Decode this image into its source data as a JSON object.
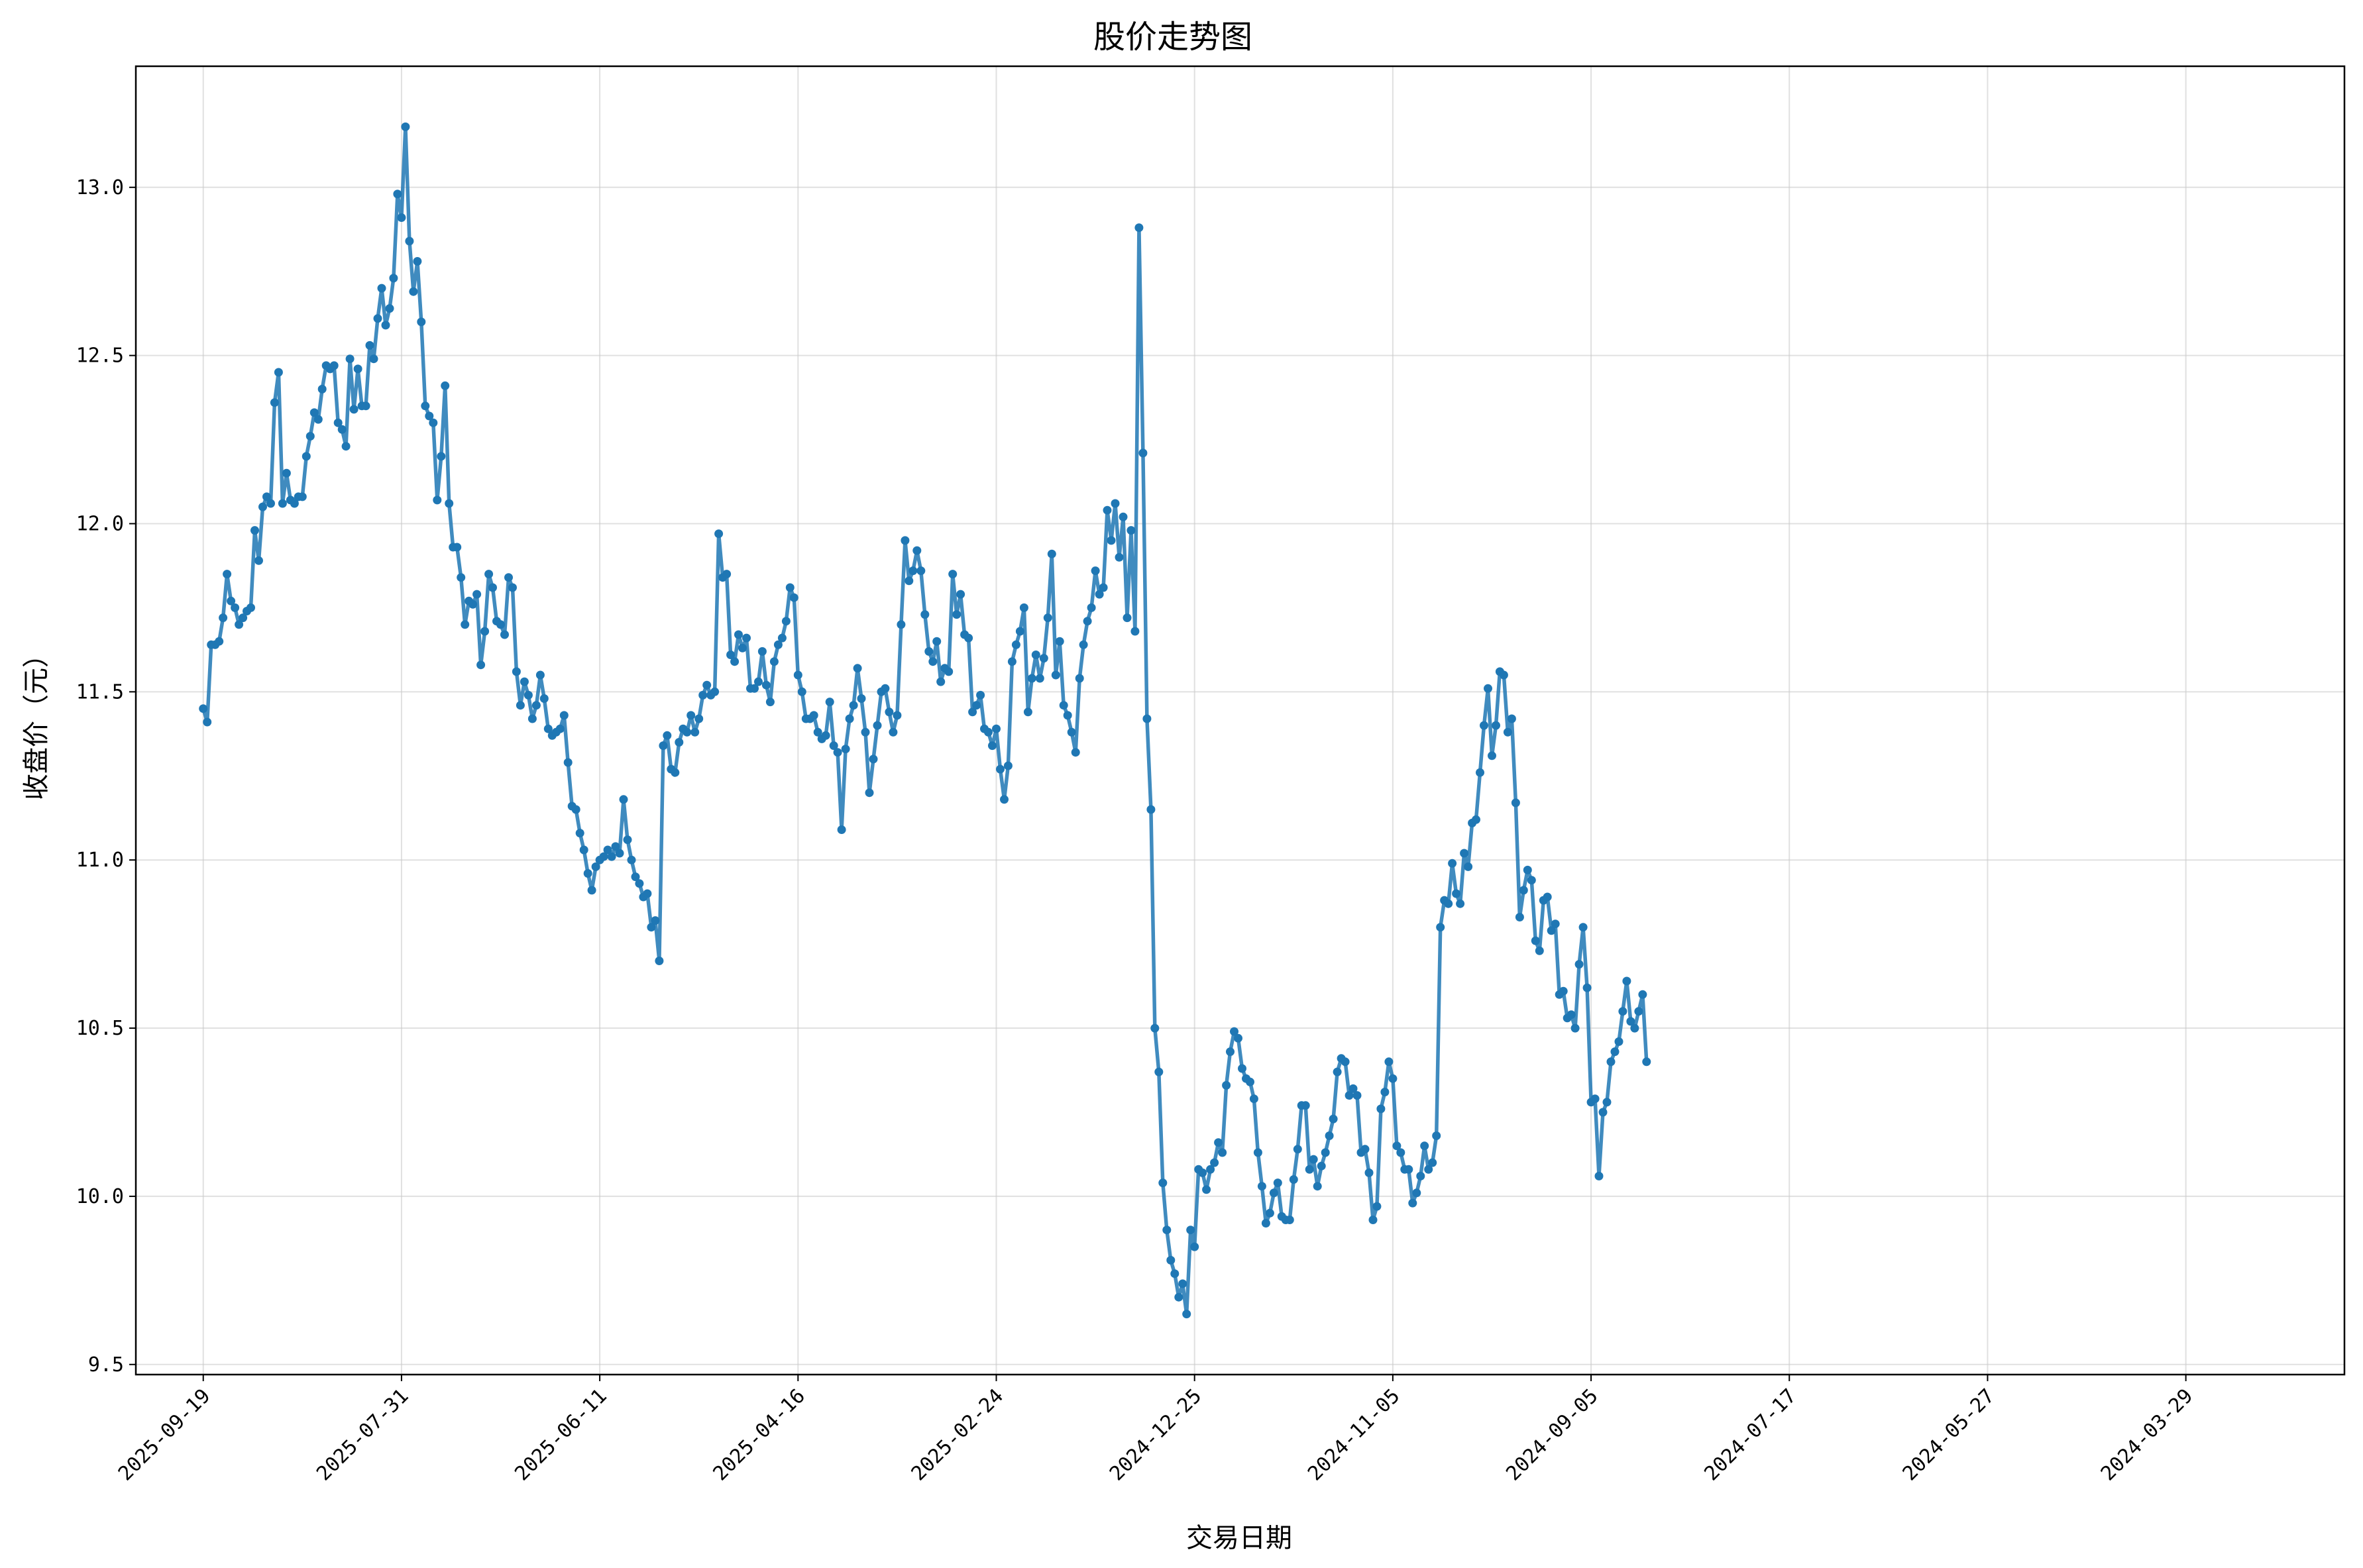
{
  "chart_data": {
    "type": "line",
    "title": "股价走势图",
    "xlabel": "交易日期",
    "ylabel": "收盘价（元）",
    "ylim": [
      9.47,
      13.36
    ],
    "xlim": [
      -17,
      540
    ],
    "grid": true,
    "line_color": "#1f77b4",
    "x_ticks": [
      {
        "index": 0,
        "label": "2025-09-19"
      },
      {
        "index": 50,
        "label": "2025-07-31"
      },
      {
        "index": 100,
        "label": "2025-06-11"
      },
      {
        "index": 150,
        "label": "2025-04-16"
      },
      {
        "index": 200,
        "label": "2025-02-24"
      },
      {
        "index": 250,
        "label": "2024-12-25"
      },
      {
        "index": 300,
        "label": "2024-11-05"
      },
      {
        "index": 350,
        "label": "2024-09-05"
      },
      {
        "index": 400,
        "label": "2024-07-17"
      },
      {
        "index": 450,
        "label": "2024-05-27"
      },
      {
        "index": 500,
        "label": "2024-03-29"
      }
    ],
    "y_ticks": [
      "9.5",
      "10.0",
      "10.5",
      "11.0",
      "11.5",
      "12.0",
      "12.5",
      "13.0"
    ],
    "series": [
      {
        "x_start": 0,
        "values": [
          11.45,
          11.41,
          11.64,
          11.64,
          11.65,
          11.72,
          11.85,
          11.77,
          11.75,
          11.7,
          11.72,
          11.74,
          11.75,
          11.98,
          11.89,
          12.05,
          12.08,
          12.06,
          12.36,
          12.45,
          12.06,
          12.15,
          12.07,
          12.06,
          12.08,
          12.08,
          12.2,
          12.26,
          12.33,
          12.31,
          12.4,
          12.47,
          12.46,
          12.47,
          12.3,
          12.28,
          12.23,
          12.49,
          12.34,
          12.46,
          12.35,
          12.35,
          12.53,
          12.49,
          12.61,
          12.7,
          12.59,
          12.64,
          12.73,
          12.98,
          12.91,
          13.18,
          12.84,
          12.69,
          12.78,
          12.6,
          12.35,
          12.32,
          12.3,
          12.07,
          12.2,
          12.41,
          12.06,
          11.93,
          11.93,
          11.84,
          11.7,
          11.77,
          11.76,
          11.79,
          11.58,
          11.68,
          11.85,
          11.81,
          11.71,
          11.7,
          11.67,
          11.84,
          11.81,
          11.56,
          11.46,
          11.53,
          11.49,
          11.42,
          11.46,
          11.55,
          11.48,
          11.39,
          11.37,
          11.38,
          11.39,
          11.43,
          11.29,
          11.16,
          11.15,
          11.08,
          11.03,
          10.96,
          10.91,
          10.98,
          11.0,
          11.01,
          11.03,
          11.01,
          11.04,
          11.02,
          11.18,
          11.06,
          11.0,
          10.95,
          10.93,
          10.89,
          10.9,
          10.8,
          10.82,
          10.7,
          11.34,
          11.37,
          11.27,
          11.26,
          11.35,
          11.39,
          11.38,
          11.43,
          11.38,
          11.42,
          11.49,
          11.52,
          11.49,
          11.5,
          11.97,
          11.84,
          11.85,
          11.61,
          11.59,
          11.67,
          11.63,
          11.66,
          11.51,
          11.51,
          11.53,
          11.62,
          11.52,
          11.47,
          11.59,
          11.64,
          11.66,
          11.71,
          11.81,
          11.78,
          11.55,
          11.5,
          11.42,
          11.42,
          11.43,
          11.38,
          11.36,
          11.37,
          11.47,
          11.34,
          11.32,
          11.09,
          11.33,
          11.42,
          11.46,
          11.57,
          11.48,
          11.38,
          11.2,
          11.3,
          11.4,
          11.5,
          11.51,
          11.44,
          11.38,
          11.43,
          11.7,
          11.95,
          11.83,
          11.86,
          11.92,
          11.86,
          11.73,
          11.62,
          11.59,
          11.65,
          11.53,
          11.57,
          11.56,
          11.85,
          11.73,
          11.79,
          11.67,
          11.66,
          11.44,
          11.46,
          11.49,
          11.39,
          11.38,
          11.34,
          11.39,
          11.27,
          11.18,
          11.28,
          11.59,
          11.64,
          11.68,
          11.75,
          11.44,
          11.54,
          11.61,
          11.54,
          11.6,
          11.72,
          11.91,
          11.55,
          11.65,
          11.46,
          11.43,
          11.38,
          11.32,
          11.54,
          11.64,
          11.71,
          11.75,
          11.86,
          11.79,
          11.81,
          12.04,
          11.95,
          12.06,
          11.9,
          12.02,
          11.72,
          11.98,
          11.68,
          12.88,
          12.21,
          11.42,
          11.15,
          10.5,
          10.37,
          10.04,
          9.9,
          9.81,
          9.77,
          9.7,
          9.74,
          9.65,
          9.9,
          9.85,
          10.08,
          10.07,
          10.02,
          10.08,
          10.1,
          10.16,
          10.13,
          10.33,
          10.43,
          10.49,
          10.47,
          10.38,
          10.35,
          10.34,
          10.29,
          10.13,
          10.03,
          9.92,
          9.95,
          10.01,
          10.04,
          9.94,
          9.93,
          9.93,
          10.05,
          10.14,
          10.27,
          10.27,
          10.08,
          10.11,
          10.03,
          10.09,
          10.13,
          10.18,
          10.23,
          10.37,
          10.41,
          10.4,
          10.3,
          10.32,
          10.3,
          10.13,
          10.14,
          10.07,
          9.93,
          9.97,
          10.26,
          10.31,
          10.4,
          10.35,
          10.15,
          10.13,
          10.08,
          10.08,
          9.98,
          10.01,
          10.06,
          10.15,
          10.08,
          10.1,
          10.18,
          10.8,
          10.88,
          10.87,
          10.99,
          10.9,
          10.87,
          11.02,
          10.98,
          11.11,
          11.12,
          11.26,
          11.4,
          11.51,
          11.31,
          11.4,
          11.56,
          11.55,
          11.38,
          11.42,
          11.17,
          10.83,
          10.91,
          10.97,
          10.94,
          10.76,
          10.73,
          10.88,
          10.89,
          10.79,
          10.81,
          10.6,
          10.61,
          10.53,
          10.54,
          10.5,
          10.69,
          10.8,
          10.62,
          10.28,
          10.29,
          10.06,
          10.25,
          10.28,
          10.4,
          10.43,
          10.46,
          10.55,
          10.64,
          10.52,
          10.5,
          10.55,
          10.6,
          10.4
        ]
      }
    ]
  }
}
